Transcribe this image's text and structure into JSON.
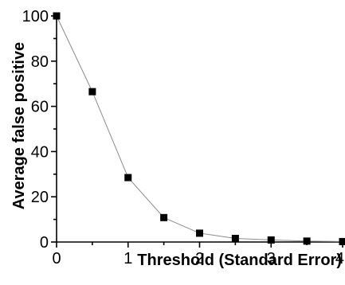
{
  "chart_data": {
    "type": "scatter",
    "title": "",
    "xlabel": "Threshold (Standard Error)",
    "ylabel": "Average false positive",
    "xlim": [
      0,
      4
    ],
    "ylim": [
      0,
      100
    ],
    "x_ticks": [
      "0",
      "1",
      "2",
      "3",
      "4"
    ],
    "y_ticks": [
      "0",
      "20",
      "40",
      "60",
      "80",
      "100"
    ],
    "grid": false,
    "line_style": "thin grey line connecting points",
    "marker": "square",
    "marker_color": "#000000",
    "line_color": "#8c8c8c",
    "series": [
      {
        "x": [
          0,
          0.5,
          1.0,
          1.5,
          2.0,
          2.5,
          3.0,
          3.5,
          4.0
        ],
        "y": [
          100,
          66.5,
          28.5,
          10.8,
          3.9,
          1.6,
          0.9,
          0.4,
          0.2
        ]
      }
    ]
  }
}
